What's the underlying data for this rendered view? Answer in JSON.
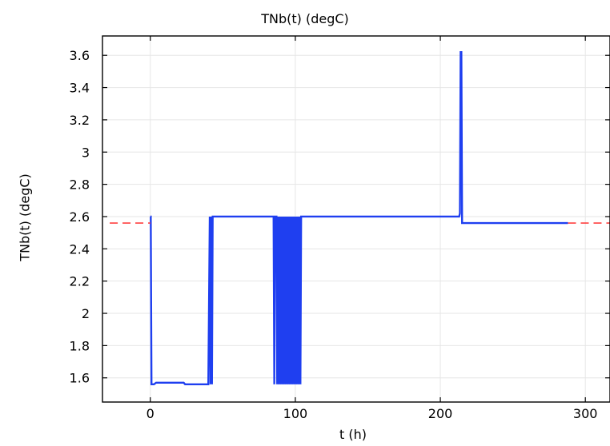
{
  "chart_data": {
    "type": "line",
    "title": "TNb(t) (degC)",
    "xlabel": "t (h)",
    "ylabel": "TNb(t) (degC)",
    "xlim": [
      -33,
      317
    ],
    "ylim": [
      1.45,
      3.72
    ],
    "xticks": [
      0,
      100,
      200,
      300
    ],
    "yticks": [
      1.6,
      1.8,
      2,
      2.2,
      2.4,
      2.6,
      2.8,
      3,
      3.2,
      3.4,
      3.6
    ],
    "ytick_labels": [
      "1.6",
      "1.8",
      "2",
      "2.2",
      "2.4",
      "2.6",
      "2.8",
      "3",
      "3.2",
      "3.4",
      "3.6"
    ],
    "grid": true,
    "series": [
      {
        "color": "#1f3ff0",
        "style": "solid",
        "x": [
          0,
          0.3,
          0.8,
          1.5,
          2.5,
          4,
          5,
          6,
          10,
          15,
          20,
          23,
          24,
          25,
          30,
          35,
          40,
          41,
          41.5,
          42,
          42.5,
          43,
          44,
          60,
          80,
          85,
          85.5,
          86,
          87,
          87.5,
          88,
          88.5,
          89,
          89.5,
          90,
          90.5,
          91,
          91.5,
          92,
          92.5,
          93,
          93.5,
          94,
          94.5,
          95,
          95.5,
          96,
          96.5,
          97,
          97.5,
          98,
          98.5,
          99,
          99.5,
          100,
          100.5,
          101,
          101.5,
          102,
          102.5,
          103,
          103.5,
          104,
          150,
          200,
          213,
          213.5,
          214,
          214.5,
          215,
          215.5,
          240,
          260,
          288
        ],
        "y": [
          2.6,
          2.6,
          1.56,
          1.56,
          1.56,
          1.57,
          1.57,
          1.57,
          1.57,
          1.57,
          1.57,
          1.57,
          1.56,
          1.56,
          1.56,
          1.56,
          1.56,
          2.6,
          1.56,
          2.6,
          1.56,
          2.6,
          2.6,
          2.6,
          2.6,
          2.6,
          1.56,
          2.6,
          2.6,
          1.56,
          2.6,
          1.56,
          2.6,
          1.56,
          2.6,
          1.56,
          2.6,
          1.56,
          2.6,
          1.56,
          2.6,
          1.56,
          2.6,
          1.56,
          2.6,
          1.56,
          2.6,
          1.56,
          2.6,
          1.56,
          2.6,
          1.56,
          2.6,
          1.56,
          2.6,
          1.56,
          2.6,
          1.56,
          2.6,
          1.56,
          2.6,
          1.56,
          2.6,
          2.6,
          2.6,
          2.6,
          2.62,
          3.62,
          3.62,
          2.56,
          2.56,
          2.56,
          2.56,
          2.56
        ]
      },
      {
        "color": "#ff4040",
        "style": "dashed",
        "x": [
          -28,
          0
        ],
        "y": [
          2.56,
          2.56
        ]
      },
      {
        "color": "#ff4040",
        "style": "dashed",
        "x": [
          288,
          317
        ],
        "y": [
          2.56,
          2.56
        ]
      }
    ]
  }
}
